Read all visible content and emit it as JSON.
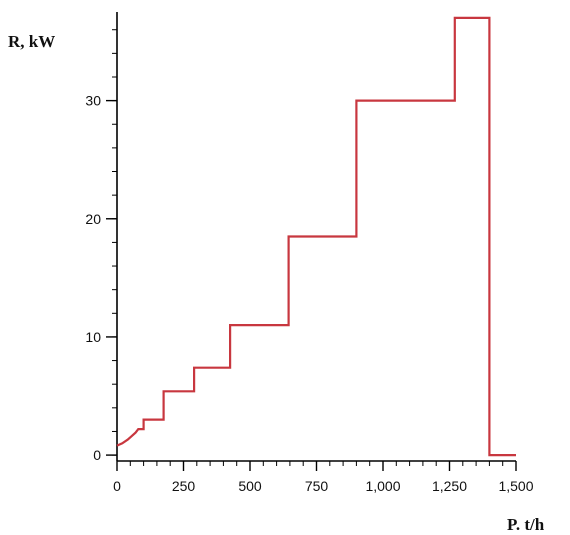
{
  "chart_data": {
    "type": "line",
    "title": "",
    "xlabel": "P. t/h",
    "ylabel": "R, kW",
    "xlim": [
      0,
      1500
    ],
    "ylim": [
      -0.5,
      37.5
    ],
    "x_ticks": [
      {
        "value": 0,
        "label": "0"
      },
      {
        "value": 250,
        "label": "250"
      },
      {
        "value": 500,
        "label": "500"
      },
      {
        "value": 750,
        "label": "750"
      },
      {
        "value": 1000,
        "label": "1,000"
      },
      {
        "value": 1250,
        "label": "1,250"
      },
      {
        "value": 1500,
        "label": "1,500"
      }
    ],
    "y_ticks": [
      {
        "value": 0,
        "label": "0"
      },
      {
        "value": 10,
        "label": "10"
      },
      {
        "value": 20,
        "label": "20"
      },
      {
        "value": 30,
        "label": "30"
      }
    ],
    "x_minor_step": 50,
    "y_minor_step": 2,
    "grid": false,
    "series_color": "#c8373f",
    "series": [
      {
        "points": [
          [
            0,
            0.8
          ],
          [
            20,
            1.0
          ],
          [
            40,
            1.3
          ],
          [
            55,
            1.6
          ],
          [
            70,
            1.9
          ],
          [
            80,
            2.2
          ],
          [
            100,
            2.2
          ],
          [
            100,
            3.0
          ],
          [
            175,
            3.0
          ],
          [
            175,
            5.4
          ],
          [
            290,
            5.4
          ],
          [
            290,
            7.4
          ],
          [
            425,
            7.4
          ],
          [
            425,
            11.0
          ],
          [
            645,
            11.0
          ],
          [
            645,
            18.5
          ],
          [
            900,
            18.5
          ],
          [
            900,
            30.0
          ],
          [
            1270,
            30.0
          ],
          [
            1270,
            37.0
          ],
          [
            1400,
            37.0
          ],
          [
            1400,
            0
          ],
          [
            1500,
            0
          ]
        ]
      }
    ]
  }
}
